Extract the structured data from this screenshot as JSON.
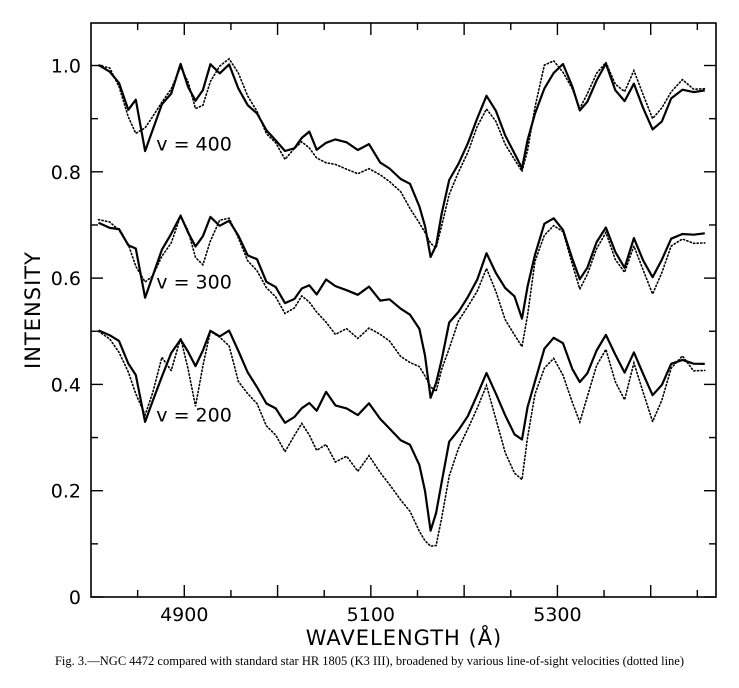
{
  "caption": "Fig. 3.—NGC 4472 compared with standard star HR 1805 (K3 III), broadened by various line-of-sight velocities (dotted line)",
  "chart_data": {
    "type": "line",
    "xlabel": "WAVELENGTH (Å)",
    "ylabel": "INTENSITY",
    "xlim": [
      4800,
      5470
    ],
    "ylim": [
      0,
      1.08
    ],
    "xticks": [
      4900,
      5100,
      5300
    ],
    "yticks": [
      0,
      0.2,
      0.4,
      0.6,
      0.8,
      1.0
    ],
    "ytick_labels": [
      "0",
      "0.2",
      "0.4",
      "0.6",
      "0.8",
      "1.0"
    ],
    "grid": false,
    "panels": [
      {
        "label": "v = 400",
        "label_pos": [
          4870,
          0.84
        ],
        "solid": {
          "x": [
            4808,
            4820,
            4830,
            4840,
            4848,
            4858,
            4866,
            4876,
            4886,
            4896,
            4904,
            4912,
            4920,
            4928,
            4938,
            4948,
            4958,
            4968,
            4978,
            4988,
            4998,
            5008,
            5018,
            5026,
            5034,
            5042,
            5052,
            5062,
            5074,
            5086,
            5098,
            5110,
            5120,
            5132,
            5142,
            5152,
            5158,
            5164,
            5170,
            5176,
            5184,
            5194,
            5204,
            5214,
            5224,
            5234,
            5244,
            5254,
            5262,
            5268,
            5276,
            5286,
            5296,
            5306,
            5316,
            5324,
            5332,
            5342,
            5352,
            5362,
            5372,
            5382,
            5392,
            5402,
            5412,
            5422,
            5434,
            5446,
            5458
          ],
          "y": [
            1.0,
            0.99,
            0.97,
            0.92,
            0.94,
            0.84,
            0.88,
            0.93,
            0.95,
            1.0,
            0.96,
            0.93,
            0.95,
            1.0,
            0.98,
            1.0,
            0.96,
            0.93,
            0.91,
            0.88,
            0.86,
            0.84,
            0.85,
            0.86,
            0.87,
            0.84,
            0.85,
            0.86,
            0.85,
            0.84,
            0.85,
            0.82,
            0.81,
            0.79,
            0.78,
            0.74,
            0.7,
            0.64,
            0.66,
            0.72,
            0.78,
            0.81,
            0.85,
            0.9,
            0.94,
            0.91,
            0.87,
            0.84,
            0.81,
            0.86,
            0.91,
            0.96,
            0.99,
            1.0,
            0.96,
            0.91,
            0.93,
            0.97,
            1.0,
            0.95,
            0.93,
            0.97,
            0.92,
            0.88,
            0.9,
            0.94,
            0.96,
            0.95,
            0.95
          ]
        },
        "dotted": {
          "x": [
            4808,
            4820,
            4830,
            4840,
            4848,
            4858,
            4866,
            4876,
            4886,
            4896,
            4904,
            4912,
            4920,
            4928,
            4938,
            4948,
            4958,
            4968,
            4978,
            4988,
            4998,
            5008,
            5018,
            5026,
            5034,
            5042,
            5052,
            5062,
            5074,
            5086,
            5098,
            5110,
            5120,
            5132,
            5142,
            5152,
            5158,
            5164,
            5170,
            5176,
            5184,
            5194,
            5204,
            5214,
            5224,
            5234,
            5244,
            5254,
            5262,
            5268,
            5276,
            5286,
            5296,
            5306,
            5316,
            5324,
            5332,
            5342,
            5352,
            5362,
            5372,
            5382,
            5392,
            5402,
            5412,
            5422,
            5434,
            5446,
            5458
          ],
          "y": [
            1.0,
            0.99,
            0.96,
            0.9,
            0.87,
            0.88,
            0.9,
            0.93,
            0.96,
            1.0,
            0.97,
            0.92,
            0.93,
            0.97,
            1.0,
            1.01,
            0.98,
            0.94,
            0.91,
            0.87,
            0.85,
            0.82,
            0.84,
            0.86,
            0.85,
            0.83,
            0.82,
            0.82,
            0.81,
            0.8,
            0.8,
            0.79,
            0.78,
            0.76,
            0.73,
            0.7,
            0.68,
            0.66,
            0.66,
            0.7,
            0.76,
            0.8,
            0.84,
            0.89,
            0.92,
            0.89,
            0.85,
            0.82,
            0.8,
            0.84,
            0.92,
            1.0,
            1.01,
            0.99,
            0.96,
            0.92,
            0.95,
            0.99,
            1.01,
            0.97,
            0.95,
            0.99,
            0.94,
            0.9,
            0.92,
            0.95,
            0.97,
            0.96,
            0.96
          ]
        }
      },
      {
        "label": "v = 300",
        "label_pos": [
          4870,
          0.58
        ],
        "solid": {
          "x": [
            4808,
            4820,
            4830,
            4840,
            4848,
            4858,
            4866,
            4876,
            4886,
            4896,
            4904,
            4912,
            4920,
            4928,
            4938,
            4948,
            4958,
            4968,
            4978,
            4988,
            4998,
            5008,
            5018,
            5026,
            5034,
            5042,
            5052,
            5062,
            5074,
            5086,
            5098,
            5110,
            5120,
            5132,
            5142,
            5152,
            5158,
            5164,
            5170,
            5176,
            5184,
            5194,
            5204,
            5214,
            5224,
            5234,
            5244,
            5254,
            5262,
            5268,
            5276,
            5286,
            5296,
            5306,
            5316,
            5324,
            5332,
            5342,
            5352,
            5362,
            5372,
            5382,
            5392,
            5402,
            5412,
            5422,
            5434,
            5446,
            5458
          ],
          "y": [
            0.71,
            0.7,
            0.69,
            0.66,
            0.65,
            0.56,
            0.6,
            0.65,
            0.68,
            0.72,
            0.69,
            0.66,
            0.68,
            0.72,
            0.7,
            0.71,
            0.68,
            0.64,
            0.63,
            0.59,
            0.58,
            0.55,
            0.56,
            0.58,
            0.59,
            0.57,
            0.6,
            0.59,
            0.58,
            0.57,
            0.59,
            0.56,
            0.56,
            0.54,
            0.53,
            0.5,
            0.45,
            0.37,
            0.4,
            0.45,
            0.52,
            0.54,
            0.57,
            0.6,
            0.65,
            0.61,
            0.58,
            0.56,
            0.52,
            0.58,
            0.64,
            0.7,
            0.71,
            0.69,
            0.64,
            0.6,
            0.62,
            0.67,
            0.7,
            0.65,
            0.62,
            0.67,
            0.63,
            0.6,
            0.63,
            0.67,
            0.68,
            0.68,
            0.68
          ]
        },
        "dotted": {
          "x": [
            4808,
            4820,
            4830,
            4840,
            4848,
            4858,
            4866,
            4876,
            4886,
            4896,
            4904,
            4912,
            4920,
            4928,
            4938,
            4948,
            4958,
            4968,
            4978,
            4988,
            4998,
            5008,
            5018,
            5026,
            5034,
            5042,
            5052,
            5062,
            5074,
            5086,
            5098,
            5110,
            5120,
            5132,
            5142,
            5152,
            5158,
            5164,
            5170,
            5176,
            5184,
            5194,
            5204,
            5214,
            5224,
            5234,
            5244,
            5254,
            5262,
            5268,
            5276,
            5286,
            5296,
            5306,
            5316,
            5324,
            5332,
            5342,
            5352,
            5362,
            5372,
            5382,
            5392,
            5402,
            5412,
            5422,
            5434,
            5446,
            5458
          ],
          "y": [
            0.71,
            0.7,
            0.69,
            0.66,
            0.62,
            0.59,
            0.6,
            0.64,
            0.67,
            0.72,
            0.69,
            0.64,
            0.63,
            0.67,
            0.71,
            0.71,
            0.67,
            0.63,
            0.61,
            0.58,
            0.56,
            0.53,
            0.54,
            0.57,
            0.56,
            0.54,
            0.52,
            0.5,
            0.51,
            0.49,
            0.5,
            0.49,
            0.48,
            0.45,
            0.44,
            0.43,
            0.41,
            0.39,
            0.39,
            0.43,
            0.47,
            0.52,
            0.55,
            0.58,
            0.62,
            0.57,
            0.52,
            0.49,
            0.47,
            0.53,
            0.63,
            0.68,
            0.7,
            0.69,
            0.63,
            0.58,
            0.61,
            0.66,
            0.69,
            0.64,
            0.61,
            0.66,
            0.61,
            0.57,
            0.61,
            0.66,
            0.67,
            0.67,
            0.67
          ]
        }
      },
      {
        "label": "v = 200",
        "label_pos": [
          4870,
          0.33
        ],
        "solid": {
          "x": [
            4808,
            4820,
            4830,
            4840,
            4848,
            4858,
            4866,
            4876,
            4886,
            4896,
            4904,
            4912,
            4920,
            4928,
            4938,
            4948,
            4958,
            4968,
            4978,
            4988,
            4998,
            5008,
            5018,
            5026,
            5034,
            5042,
            5052,
            5062,
            5074,
            5086,
            5098,
            5110,
            5120,
            5132,
            5142,
            5152,
            5158,
            5164,
            5170,
            5176,
            5184,
            5194,
            5204,
            5214,
            5224,
            5234,
            5244,
            5254,
            5262,
            5268,
            5276,
            5286,
            5296,
            5306,
            5316,
            5324,
            5332,
            5342,
            5352,
            5362,
            5372,
            5382,
            5392,
            5402,
            5412,
            5422,
            5434,
            5446,
            5458
          ],
          "y": [
            0.5,
            0.49,
            0.48,
            0.44,
            0.42,
            0.33,
            0.37,
            0.42,
            0.46,
            0.49,
            0.46,
            0.43,
            0.46,
            0.5,
            0.49,
            0.5,
            0.46,
            0.42,
            0.4,
            0.37,
            0.36,
            0.33,
            0.34,
            0.36,
            0.37,
            0.35,
            0.38,
            0.36,
            0.35,
            0.34,
            0.36,
            0.33,
            0.32,
            0.3,
            0.29,
            0.25,
            0.2,
            0.13,
            0.16,
            0.22,
            0.29,
            0.31,
            0.34,
            0.38,
            0.42,
            0.38,
            0.34,
            0.31,
            0.3,
            0.36,
            0.41,
            0.47,
            0.49,
            0.48,
            0.43,
            0.4,
            0.42,
            0.46,
            0.49,
            0.45,
            0.42,
            0.46,
            0.42,
            0.38,
            0.4,
            0.44,
            0.45,
            0.44,
            0.44
          ]
        },
        "dotted": {
          "x": [
            4808,
            4820,
            4830,
            4840,
            4848,
            4858,
            4866,
            4876,
            4886,
            4896,
            4904,
            4912,
            4920,
            4928,
            4938,
            4948,
            4958,
            4968,
            4978,
            4988,
            4998,
            5008,
            5018,
            5026,
            5034,
            5042,
            5052,
            5062,
            5074,
            5086,
            5098,
            5110,
            5120,
            5132,
            5142,
            5152,
            5158,
            5164,
            5170,
            5176,
            5184,
            5194,
            5204,
            5214,
            5224,
            5234,
            5244,
            5254,
            5262,
            5268,
            5276,
            5286,
            5296,
            5306,
            5316,
            5324,
            5332,
            5342,
            5352,
            5362,
            5372,
            5382,
            5392,
            5402,
            5412,
            5422,
            5434,
            5446,
            5458
          ],
          "y": [
            0.5,
            0.48,
            0.46,
            0.42,
            0.38,
            0.34,
            0.38,
            0.45,
            0.43,
            0.49,
            0.43,
            0.36,
            0.44,
            0.5,
            0.49,
            0.47,
            0.4,
            0.38,
            0.36,
            0.32,
            0.3,
            0.27,
            0.3,
            0.33,
            0.31,
            0.28,
            0.29,
            0.26,
            0.27,
            0.24,
            0.26,
            0.23,
            0.21,
            0.18,
            0.16,
            0.12,
            0.1,
            0.09,
            0.1,
            0.15,
            0.23,
            0.28,
            0.32,
            0.36,
            0.4,
            0.33,
            0.27,
            0.23,
            0.22,
            0.3,
            0.38,
            0.43,
            0.45,
            0.42,
            0.37,
            0.33,
            0.38,
            0.44,
            0.47,
            0.41,
            0.37,
            0.44,
            0.38,
            0.33,
            0.37,
            0.43,
            0.45,
            0.43,
            0.43
          ]
        }
      }
    ]
  }
}
